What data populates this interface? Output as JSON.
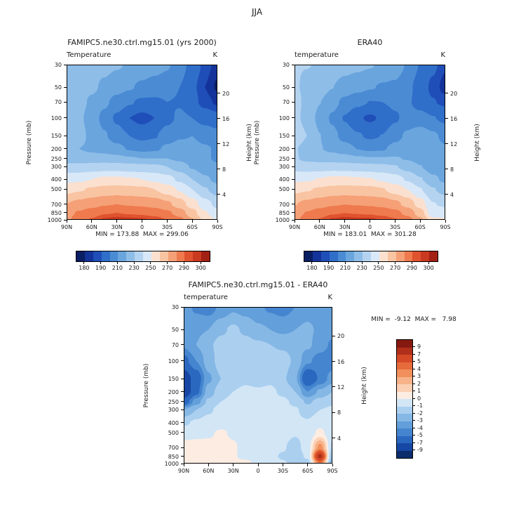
{
  "page": {
    "title": "JJA"
  },
  "axes": {
    "pressure_label": "Pressure (mb)",
    "height_label": "Height (km)",
    "pressure_ticks": [
      30,
      50,
      70,
      100,
      150,
      200,
      250,
      300,
      400,
      500,
      700,
      850,
      1000
    ],
    "lat_ticks": [
      "90N",
      "60N",
      "30N",
      "0",
      "30S",
      "60S",
      "90S"
    ],
    "lat_values": [
      90,
      60,
      30,
      0,
      -30,
      -60,
      -90
    ],
    "height_ticks": [
      20,
      16,
      12,
      8,
      4
    ]
  },
  "chart_data": [
    {
      "type": "heatmap",
      "title": "FAMIPC5.ne30.ctrl.mg15.01 (yrs 2000)",
      "subtitle": "Temperature",
      "units": "K",
      "stats": "MIN = 173.88  MAX = 299.06",
      "x_lat": [
        90,
        75,
        60,
        45,
        30,
        15,
        0,
        -15,
        -30,
        -45,
        -60,
        -75,
        -90
      ],
      "y_pressure_mb": [
        30,
        50,
        70,
        100,
        150,
        200,
        250,
        300,
        400,
        500,
        700,
        850,
        1000
      ],
      "contour_levels": [
        180,
        185,
        190,
        200,
        210,
        220,
        230,
        240,
        250,
        260,
        270,
        280,
        290,
        295,
        300
      ],
      "colorbar_labels": [
        180,
        190,
        210,
        230,
        250,
        270,
        290,
        300
      ],
      "colors": [
        "#0a1e63",
        "#13339b",
        "#1f4eb8",
        "#2f6ec9",
        "#4a8bd4",
        "#6aa5de",
        "#8ebde8",
        "#b4d3f0",
        "#d8e8f8",
        "#fbe0cf",
        "#f9c4a2",
        "#f5a077",
        "#ee7a4e",
        "#e0532f",
        "#c93a20",
        "#a32015"
      ],
      "values": [
        [
          227,
          226,
          225,
          223,
          221,
          219,
          217,
          214,
          211,
          205,
          196,
          188,
          182
        ],
        [
          228,
          225,
          222,
          218,
          214,
          211,
          208,
          206,
          205,
          200,
          192,
          185,
          179
        ],
        [
          230,
          224,
          218,
          212,
          206,
          201,
          198,
          198,
          200,
          199,
          193,
          187,
          184
        ],
        [
          228,
          222,
          215,
          207,
          198,
          190,
          187,
          190,
          197,
          202,
          200,
          196,
          193
        ],
        [
          230,
          224,
          217,
          211,
          205,
          200,
          197,
          199,
          205,
          209,
          210,
          207,
          204
        ],
        [
          222,
          220,
          218,
          216,
          213,
          209,
          207,
          208,
          212,
          214,
          213,
          211,
          209
        ],
        [
          225,
          224,
          224,
          224,
          223,
          221,
          220,
          220,
          220,
          218,
          214,
          211,
          209
        ],
        [
          233,
          233,
          234,
          235,
          235,
          234,
          233,
          232,
          230,
          225,
          219,
          214,
          211
        ],
        [
          247,
          248,
          250,
          252,
          252,
          251,
          250,
          248,
          244,
          238,
          230,
          222,
          217
        ],
        [
          257,
          259,
          261,
          263,
          264,
          263,
          262,
          260,
          255,
          249,
          240,
          231,
          225
        ],
        [
          270,
          273,
          276,
          279,
          280,
          279,
          278,
          276,
          272,
          265,
          255,
          244,
          237
        ],
        [
          277,
          281,
          285,
          289,
          290,
          289,
          288,
          286,
          282,
          275,
          264,
          251,
          243
        ],
        [
          278,
          285,
          291,
          296,
          298,
          297,
          296,
          294,
          290,
          283,
          271,
          257,
          248
        ]
      ]
    },
    {
      "type": "heatmap",
      "title": "ERA40",
      "subtitle": "temperature",
      "units": "K",
      "stats": "MIN = 183.01  MAX = 301.28",
      "x_lat": [
        90,
        75,
        60,
        45,
        30,
        15,
        0,
        -15,
        -30,
        -45,
        -60,
        -75,
        -90
      ],
      "y_pressure_mb": [
        30,
        50,
        70,
        100,
        150,
        200,
        250,
        300,
        400,
        500,
        700,
        850,
        1000
      ],
      "contour_levels": [
        180,
        185,
        190,
        200,
        210,
        220,
        230,
        240,
        250,
        260,
        270,
        280,
        290,
        295,
        300
      ],
      "colorbar_labels": [
        180,
        190,
        210,
        230,
        250,
        270,
        290,
        300
      ],
      "colors": [
        "#0a1e63",
        "#13339b",
        "#1f4eb8",
        "#2f6ec9",
        "#4a8bd4",
        "#6aa5de",
        "#8ebde8",
        "#b4d3f0",
        "#d8e8f8",
        "#fbe0cf",
        "#f9c4a2",
        "#f5a077",
        "#ee7a4e",
        "#e0532f",
        "#c93a20",
        "#a32015"
      ],
      "values": [
        [
          230.5,
          230.2,
          229.5,
          226.8,
          224.2,
          222.5,
          220.8,
          218.2,
          215.5,
          209,
          199.5,
          191.8,
          186
        ],
        [
          231,
          228.2,
          225,
          220.2,
          215.8,
          213.2,
          210.8,
          209,
          208.2,
          203,
          194.8,
          188.2,
          182.5
        ],
        [
          233.8,
          227,
          220.2,
          213.6,
          207.4,
          202.6,
          199.8,
          200,
          202.2,
          201.4,
          195.8,
          190.5,
          188.2
        ],
        [
          233.5,
          226,
          217.5,
          208.5,
          199.2,
          191.3,
          188.6,
          191.4,
          198.5,
          204.2,
          203.8,
          200.5,
          197.8
        ],
        [
          238.5,
          230,
          220.2,
          213,
          206.4,
          201.2,
          198.3,
          200.2,
          206.8,
          211.8,
          216.5,
          211.8,
          207.5
        ],
        [
          231.1,
          225.5,
          220.5,
          217.5,
          214,
          209.8,
          207.9,
          208.8,
          213.2,
          216,
          217,
          213.8,
          211
        ],
        [
          231,
          227.5,
          225.8,
          225,
          223.7,
          221.6,
          220.7,
          220.6,
          220.8,
          219.2,
          216.2,
          212.6,
          210.2
        ],
        [
          236,
          235,
          235.2,
          235.6,
          235.4,
          234.5,
          233.6,
          232.6,
          230.7,
          225.9,
          220.4,
          215,
          211.8
        ],
        [
          248.2,
          248.8,
          250.5,
          252.3,
          252.2,
          251.4,
          250.6,
          248.6,
          244.7,
          238.8,
          230.9,
          222.4,
          217.5
        ],
        [
          257.4,
          259.2,
          261.1,
          262.9,
          264.1,
          263.3,
          262.5,
          260.6,
          255.7,
          249.9,
          240.7,
          230.7,
          225.8
        ],
        [
          269.6,
          272.7,
          275.8,
          278.7,
          279.9,
          279.3,
          278.6,
          276.7,
          272.9,
          266.4,
          255.5,
          240.5,
          238.2
        ],
        [
          276.2,
          280.4,
          284.6,
          288.8,
          289.9,
          289.3,
          288.6,
          286.8,
          283.1,
          276.6,
          264.8,
          243.1,
          245.2
        ],
        [
          277.5,
          284.1,
          290.7,
          295.9,
          297.8,
          296.6,
          296.4,
          294.6,
          290.9,
          284.2,
          272.5,
          253,
          250.8
        ]
      ]
    },
    {
      "type": "heatmap",
      "title": "FAMIPC5.ne30.ctrl.mg15.01 - ERA40",
      "subtitle": "temperature",
      "units": "K",
      "stats": "MIN =  -9.12  MAX =   7.98",
      "x_lat": [
        90,
        75,
        60,
        45,
        30,
        15,
        0,
        -15,
        -30,
        -45,
        -60,
        -75,
        -90
      ],
      "y_pressure_mb": [
        30,
        50,
        70,
        100,
        150,
        200,
        250,
        300,
        400,
        500,
        700,
        850,
        1000
      ],
      "contour_levels": [
        -9,
        -7,
        -5,
        -4,
        -3,
        -2,
        -1,
        0,
        1,
        2,
        3,
        4,
        5,
        7,
        9
      ],
      "colorbar_labels": [
        9,
        7,
        5,
        4,
        3,
        2,
        1,
        0,
        -1,
        -2,
        -3,
        -4,
        -5,
        -7,
        -9
      ],
      "colors": [
        "#0b2d6b",
        "#1747a5",
        "#2a68c0",
        "#4585cf",
        "#639fda",
        "#86b8e6",
        "#abcfef",
        "#d2e6f6",
        "#fcece1",
        "#fbd0b4",
        "#f7b289",
        "#f1905d",
        "#e76b3b",
        "#d54a26",
        "#b02f1a",
        "#871a10"
      ],
      "values": [
        [
          -3.5,
          -4.2,
          -4.5,
          -3.8,
          -3.2,
          -3.5,
          -3.8,
          -4.2,
          -4.5,
          -4,
          -3.5,
          -3.8,
          -4
        ],
        [
          -3,
          -3.2,
          -3,
          -2.2,
          -1.8,
          -2.2,
          -2.8,
          -3,
          -3.2,
          -3,
          -2.8,
          -3.2,
          -3.5
        ],
        [
          -3.8,
          -3,
          -2.2,
          -1.6,
          -1.4,
          -1.6,
          -1.8,
          -2,
          -2.2,
          -2.4,
          -2.8,
          -3.5,
          -4.2
        ],
        [
          -5.5,
          -4,
          -2.5,
          -1.5,
          -1.2,
          -1.3,
          -1.6,
          -1.4,
          -1.5,
          -2.2,
          -3.8,
          -4.5,
          -4.8
        ],
        [
          -8.5,
          -6,
          -3.2,
          -2,
          -1.4,
          -1.2,
          -1.3,
          -1.2,
          -1.8,
          -2.8,
          -6.5,
          -4.8,
          -3.5
        ],
        [
          -9.1,
          -5.5,
          -2.5,
          -1.5,
          -1,
          -0.8,
          -0.9,
          -0.8,
          -1.2,
          -2,
          -4,
          -2.8,
          -2
        ],
        [
          -6,
          -3.5,
          -1.8,
          -1,
          -0.7,
          -0.6,
          -0.7,
          -0.6,
          -0.8,
          -1.2,
          -2.2,
          -1.6,
          -1.2
        ],
        [
          -3,
          -2,
          -1.2,
          -0.6,
          -0.4,
          -0.5,
          -0.6,
          -0.6,
          -0.7,
          -0.9,
          -1.4,
          -1,
          -0.8
        ],
        [
          -1.2,
          -0.8,
          -0.5,
          -0.3,
          -0.2,
          -0.4,
          -0.6,
          -0.6,
          -0.7,
          -0.8,
          -0.9,
          -0.4,
          -0.5
        ],
        [
          -0.4,
          -0.2,
          -0.1,
          0.1,
          -0.1,
          -0.3,
          -0.5,
          -0.6,
          -0.7,
          -0.9,
          -0.7,
          0.3,
          -0.8
        ],
        [
          0.4,
          0.3,
          0.2,
          0.3,
          0.1,
          -0.3,
          -0.6,
          -0.7,
          -0.9,
          -1.4,
          -0.5,
          3.5,
          -1.2
        ],
        [
          0.8,
          0.6,
          0.4,
          0.2,
          0.1,
          -0.3,
          -0.6,
          -0.8,
          -1.1,
          -1.6,
          -0.8,
          7.9,
          -2.2
        ],
        [
          0.5,
          0.9,
          0.3,
          0.1,
          0.2,
          0.4,
          -0.4,
          -0.6,
          -0.9,
          -1.2,
          -1.5,
          4,
          -2.8
        ]
      ]
    }
  ]
}
